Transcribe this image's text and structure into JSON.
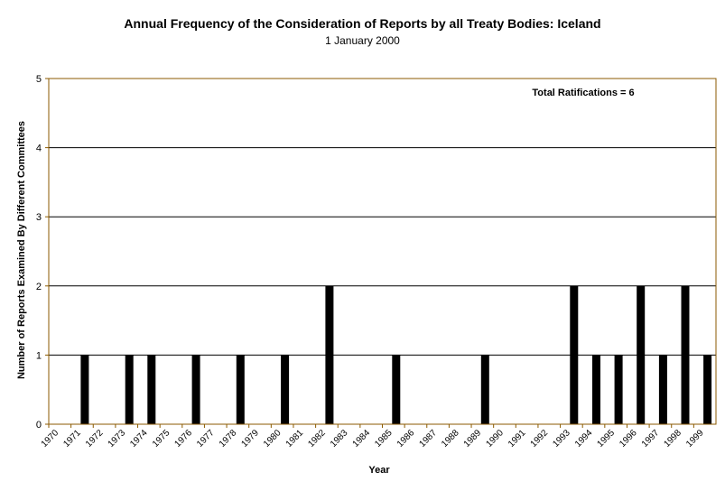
{
  "chart_data": {
    "type": "bar",
    "title": "Annual Frequency of the Consideration of Reports by all Treaty Bodies: Iceland",
    "subtitle": "1 January 2000",
    "xlabel": "Year",
    "ylabel": "Number of Reports Examined By Different Committees",
    "annotation": "Total Ratifications = 6",
    "ylim": [
      0,
      5
    ],
    "yticks": [
      "0",
      "1",
      "2",
      "3",
      "4",
      "5"
    ],
    "grid": true,
    "categories": [
      "1970",
      "1971",
      "1972",
      "1973",
      "1974",
      "1975",
      "1976",
      "1977",
      "1978",
      "1979",
      "1980",
      "1981",
      "1982",
      "1983",
      "1984",
      "1985",
      "1986",
      "1987",
      "1988",
      "1989",
      "1990",
      "1991",
      "1992",
      "1993",
      "1994",
      "1995",
      "1996",
      "1997",
      "1998",
      "1999"
    ],
    "values": [
      0,
      1,
      0,
      1,
      1,
      0,
      1,
      0,
      1,
      0,
      1,
      0,
      2,
      0,
      0,
      1,
      0,
      0,
      0,
      1,
      0,
      0,
      0,
      2,
      1,
      1,
      2,
      1,
      2,
      1
    ],
    "colors": {
      "bar": "#000000",
      "axis": "#8b5a00",
      "grid": "#000000"
    }
  }
}
